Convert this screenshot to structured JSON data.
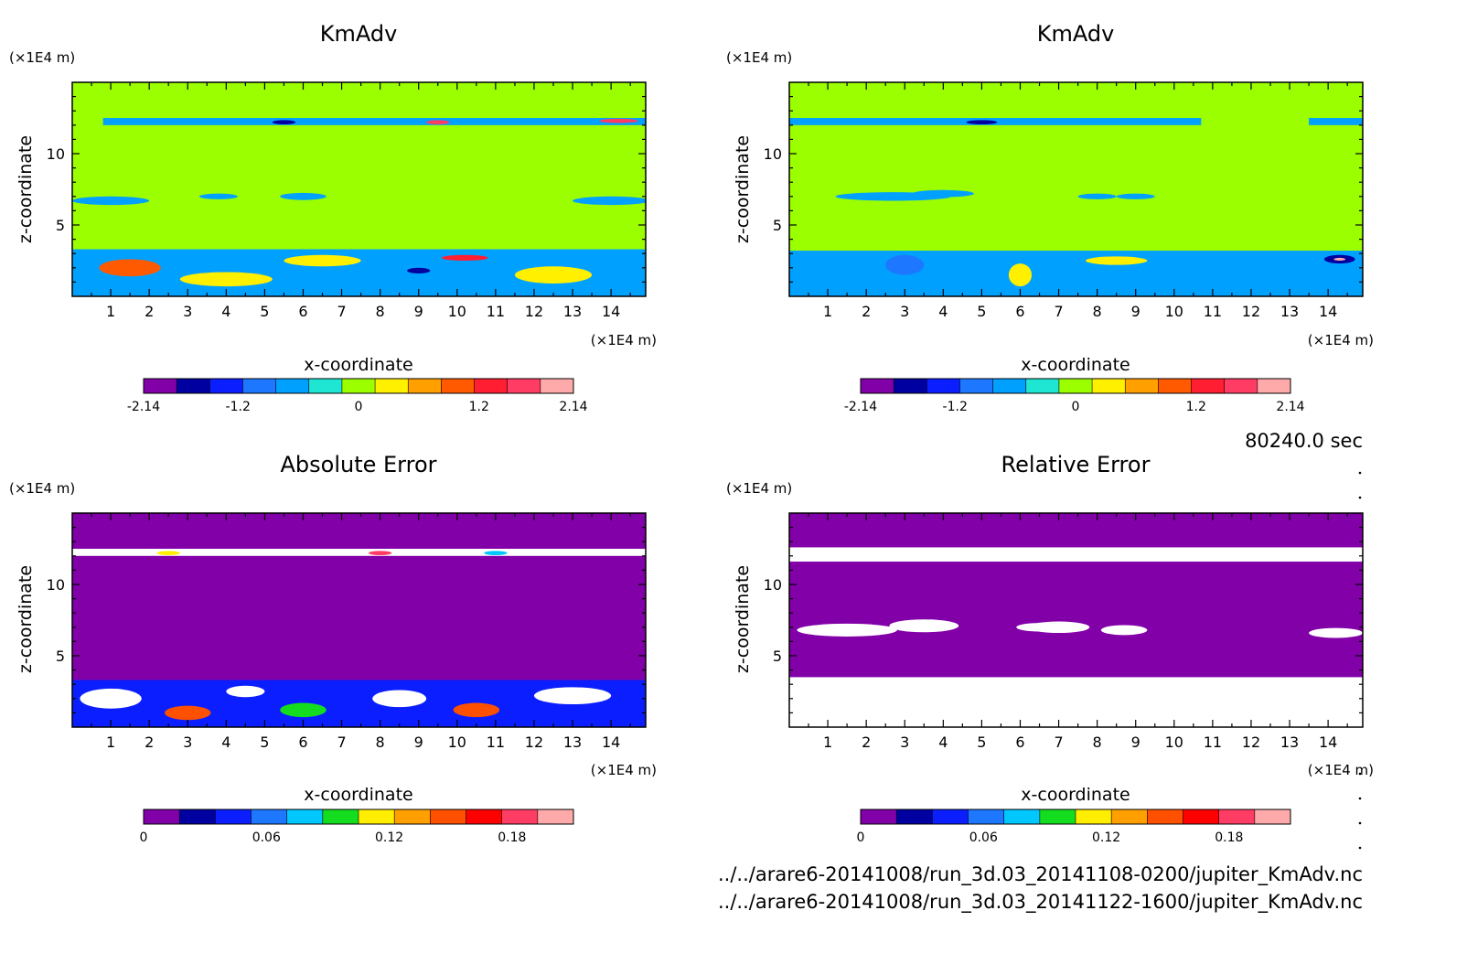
{
  "timestamp": "80240.0 sec",
  "files": [
    "../../arare6-20141008/run_3d.03_20141108-0200/jupiter_KmAdv.nc",
    "../../arare6-20141008/run_3d.03_20141122-1600/jupiter_KmAdv.nc"
  ],
  "colors": {
    "value_scale": [
      "#8200a8",
      "#0000a0",
      "#0a1eff",
      "#1e78ff",
      "#00a0ff",
      "#1ee6d2",
      "#9bff00",
      "#fff000",
      "#ffa000",
      "#ff5a00",
      "#ff1e32",
      "#ff3c64",
      "#ffaaaa"
    ],
    "error_scale": [
      "#8200a8",
      "#0000a0",
      "#0a1eff",
      "#1e78ff",
      "#00c8ff",
      "#14dc1e",
      "#ffee00",
      "#ffa000",
      "#ff5000",
      "#ff0000",
      "#ff3c64",
      "#ffaaaa"
    ],
    "error_over": "#ffffff"
  },
  "chart_data": [
    {
      "type": "heatmap",
      "title": "KmAdv",
      "xlabel": "x-coordinate",
      "ylabel": "z-coordinate",
      "x_unit": "(×1E4 m)",
      "y_unit": "(×1E4 m)",
      "xlim": [
        0,
        14.9
      ],
      "ylim": [
        0,
        15
      ],
      "x_ticks": [
        "1",
        "2",
        "3",
        "4",
        "5",
        "6",
        "7",
        "8",
        "9",
        "10",
        "11",
        "12",
        "13",
        "14"
      ],
      "y_ticks": [
        "5",
        "10"
      ],
      "background_value": 0.1,
      "colorbar": {
        "min": -2.14,
        "max": 2.14,
        "tick_labels": [
          "-2.14",
          "-1.2",
          "0",
          "1.2",
          "2.14"
        ],
        "tick_values": [
          -2.14,
          -1.2,
          0,
          1.2,
          2.14
        ]
      },
      "features": [
        {
          "kind": "band",
          "x0": 0,
          "x1": 14.9,
          "z0": 0,
          "z1": 3.3,
          "value": -0.5
        },
        {
          "kind": "blob",
          "x": 1.5,
          "z": 2.0,
          "rx": 0.8,
          "rz": 0.6,
          "value": 0.9
        },
        {
          "kind": "blob",
          "x": 4.0,
          "z": 1.2,
          "rx": 1.2,
          "rz": 0.5,
          "value": 0.3
        },
        {
          "kind": "blob",
          "x": 9.0,
          "z": 1.8,
          "rx": 0.3,
          "rz": 0.2,
          "value": -1.5
        },
        {
          "kind": "blob",
          "x": 10.2,
          "z": 2.7,
          "rx": 0.6,
          "rz": 0.2,
          "value": 1.3
        },
        {
          "kind": "blob",
          "x": 12.5,
          "z": 1.5,
          "rx": 1.0,
          "rz": 0.6,
          "value": 0.3
        },
        {
          "kind": "blob",
          "x": 6.5,
          "z": 2.5,
          "rx": 1.0,
          "rz": 0.4,
          "value": 0.4
        },
        {
          "kind": "band",
          "x0": 0.8,
          "x1": 14.9,
          "z0": 12.0,
          "z1": 12.5,
          "value": -0.5
        },
        {
          "kind": "blob",
          "x": 5.5,
          "z": 12.2,
          "rx": 0.3,
          "rz": 0.15,
          "value": -1.5
        },
        {
          "kind": "blob",
          "x": 9.5,
          "z": 12.2,
          "rx": 0.3,
          "rz": 0.15,
          "value": 1.5
        },
        {
          "kind": "blob",
          "x": 14.2,
          "z": 12.3,
          "rx": 0.5,
          "rz": 0.15,
          "value": 1.7
        },
        {
          "kind": "blob",
          "x": 1.0,
          "z": 6.7,
          "rx": 1.0,
          "rz": 0.3,
          "value": -0.5
        },
        {
          "kind": "blob",
          "x": 3.8,
          "z": 7.0,
          "rx": 0.5,
          "rz": 0.2,
          "value": -0.5
        },
        {
          "kind": "blob",
          "x": 6.0,
          "z": 7.0,
          "rx": 0.6,
          "rz": 0.25,
          "value": -0.5
        },
        {
          "kind": "blob",
          "x": 14.0,
          "z": 6.7,
          "rx": 1.0,
          "rz": 0.3,
          "value": -0.5
        }
      ]
    },
    {
      "type": "heatmap",
      "title": "KmAdv",
      "xlabel": "x-coordinate",
      "ylabel": "z-coordinate",
      "x_unit": "(×1E4 m)",
      "y_unit": "(×1E4 m)",
      "xlim": [
        0,
        14.9
      ],
      "ylim": [
        0,
        15
      ],
      "x_ticks": [
        "1",
        "2",
        "3",
        "4",
        "5",
        "6",
        "7",
        "8",
        "9",
        "10",
        "11",
        "12",
        "13",
        "14"
      ],
      "y_ticks": [
        "5",
        "10"
      ],
      "background_value": 0.1,
      "colorbar": {
        "min": -2.14,
        "max": 2.14,
        "tick_labels": [
          "-2.14",
          "-1.2",
          "0",
          "1.2",
          "2.14"
        ],
        "tick_values": [
          -2.14,
          -1.2,
          0,
          1.2,
          2.14
        ]
      },
      "features": [
        {
          "kind": "band",
          "x0": 0,
          "x1": 14.9,
          "z0": 0,
          "z1": 3.2,
          "value": -0.5
        },
        {
          "kind": "blob",
          "x": 3.0,
          "z": 2.2,
          "rx": 0.5,
          "rz": 0.7,
          "value": -0.9
        },
        {
          "kind": "blob",
          "x": 6.0,
          "z": 1.5,
          "rx": 0.3,
          "rz": 0.8,
          "value": 0.2
        },
        {
          "kind": "blob",
          "x": 14.3,
          "z": 2.6,
          "rx": 0.4,
          "rz": 0.3,
          "value": -1.5
        },
        {
          "kind": "blob",
          "x": 14.3,
          "z": 2.6,
          "rx": 0.15,
          "rz": 0.1,
          "value": 2.1
        },
        {
          "kind": "blob",
          "x": 8.5,
          "z": 2.5,
          "rx": 0.8,
          "rz": 0.3,
          "value": 0.4
        },
        {
          "kind": "band",
          "x0": 0,
          "x1": 10.7,
          "z0": 12.0,
          "z1": 12.5,
          "value": -0.5
        },
        {
          "kind": "band",
          "x0": 13.5,
          "x1": 14.9,
          "z0": 12.0,
          "z1": 12.5,
          "value": -0.5
        },
        {
          "kind": "blob",
          "x": 5.0,
          "z": 12.2,
          "rx": 0.4,
          "rz": 0.15,
          "value": -1.5
        },
        {
          "kind": "blob",
          "x": 2.7,
          "z": 7.0,
          "rx": 1.5,
          "rz": 0.3,
          "value": -0.5
        },
        {
          "kind": "blob",
          "x": 4.0,
          "z": 7.2,
          "rx": 0.8,
          "rz": 0.25,
          "value": -0.5
        },
        {
          "kind": "blob",
          "x": 8.0,
          "z": 7.0,
          "rx": 0.5,
          "rz": 0.2,
          "value": -0.5
        },
        {
          "kind": "blob",
          "x": 9.0,
          "z": 7.0,
          "rx": 0.5,
          "rz": 0.2,
          "value": -0.5
        }
      ]
    },
    {
      "type": "heatmap",
      "title": "Absolute Error",
      "xlabel": "x-coordinate",
      "ylabel": "z-coordinate",
      "x_unit": "(×1E4 m)",
      "y_unit": "(×1E4 m)",
      "xlim": [
        0,
        14.9
      ],
      "ylim": [
        0,
        15
      ],
      "x_ticks": [
        "1",
        "2",
        "3",
        "4",
        "5",
        "6",
        "7",
        "8",
        "9",
        "10",
        "11",
        "12",
        "13",
        "14"
      ],
      "y_ticks": [
        "5",
        "10"
      ],
      "background_value": 0,
      "colorbar": {
        "min": 0,
        "max": 0.21,
        "tick_labels": [
          "0",
          "0.06",
          "0.12",
          "0.18"
        ],
        "tick_values": [
          0,
          0.06,
          0.12,
          0.18
        ]
      },
      "features": [
        {
          "kind": "band",
          "x0": 0,
          "x1": 14.9,
          "z0": 0,
          "z1": 3.3,
          "value": 0.04
        },
        {
          "kind": "blob",
          "x": 1.0,
          "z": 2.0,
          "rx": 0.8,
          "rz": 0.7,
          "value": "over"
        },
        {
          "kind": "blob",
          "x": 3.0,
          "z": 1.0,
          "rx": 0.6,
          "rz": 0.5,
          "value": 0.15
        },
        {
          "kind": "blob",
          "x": 4.5,
          "z": 2.5,
          "rx": 0.5,
          "rz": 0.4,
          "value": "over"
        },
        {
          "kind": "blob",
          "x": 6.0,
          "z": 1.2,
          "rx": 0.6,
          "rz": 0.5,
          "value": 0.1
        },
        {
          "kind": "blob",
          "x": 8.5,
          "z": 2.0,
          "rx": 0.7,
          "rz": 0.6,
          "value": "over"
        },
        {
          "kind": "blob",
          "x": 10.5,
          "z": 1.2,
          "rx": 0.6,
          "rz": 0.5,
          "value": 0.15
        },
        {
          "kind": "blob",
          "x": 13.0,
          "z": 2.2,
          "rx": 1.0,
          "rz": 0.6,
          "value": "over"
        },
        {
          "kind": "band",
          "x0": 0,
          "x1": 14.9,
          "z0": 12.0,
          "z1": 12.5,
          "value": "over"
        },
        {
          "kind": "blob",
          "x": 2.5,
          "z": 12.2,
          "rx": 0.3,
          "rz": 0.15,
          "value": 0.12
        },
        {
          "kind": "blob",
          "x": 8.0,
          "z": 12.2,
          "rx": 0.3,
          "rz": 0.15,
          "value": 0.18
        },
        {
          "kind": "blob",
          "x": 11.0,
          "z": 12.2,
          "rx": 0.3,
          "rz": 0.15,
          "value": 0.08
        }
      ]
    },
    {
      "type": "heatmap",
      "title": "Relative Error",
      "xlabel": "x-coordinate",
      "ylabel": "z-coordinate",
      "x_unit": "(×1E4 m)",
      "y_unit": "(×1E4 m)",
      "xlim": [
        0,
        14.9
      ],
      "ylim": [
        0,
        15
      ],
      "x_ticks": [
        "1",
        "2",
        "3",
        "4",
        "5",
        "6",
        "7",
        "8",
        "9",
        "10",
        "11",
        "12",
        "13",
        "14"
      ],
      "y_ticks": [
        "5",
        "10"
      ],
      "background_value": 0,
      "colorbar": {
        "min": 0,
        "max": 0.21,
        "tick_labels": [
          "0",
          "0.06",
          "0.12",
          "0.18"
        ],
        "tick_values": [
          0,
          0.06,
          0.12,
          0.18
        ]
      },
      "features": [
        {
          "kind": "band",
          "x0": 0,
          "x1": 14.9,
          "z0": 0,
          "z1": 3.5,
          "value": "over"
        },
        {
          "kind": "band",
          "x0": 0,
          "x1": 14.9,
          "z0": 11.6,
          "z1": 12.6,
          "value": "over"
        },
        {
          "kind": "blob",
          "x": 1.5,
          "z": 6.8,
          "rx": 1.3,
          "rz": 0.45,
          "value": "over"
        },
        {
          "kind": "blob",
          "x": 3.5,
          "z": 7.1,
          "rx": 0.9,
          "rz": 0.45,
          "value": "over"
        },
        {
          "kind": "blob",
          "x": 6.5,
          "z": 7.0,
          "rx": 0.6,
          "rz": 0.3,
          "value": "over"
        },
        {
          "kind": "blob",
          "x": 7.0,
          "z": 7.0,
          "rx": 0.8,
          "rz": 0.4,
          "value": "over"
        },
        {
          "kind": "blob",
          "x": 8.7,
          "z": 6.8,
          "rx": 0.6,
          "rz": 0.35,
          "value": "over"
        },
        {
          "kind": "blob",
          "x": 14.2,
          "z": 6.6,
          "rx": 0.7,
          "rz": 0.35,
          "value": "over"
        }
      ]
    }
  ]
}
